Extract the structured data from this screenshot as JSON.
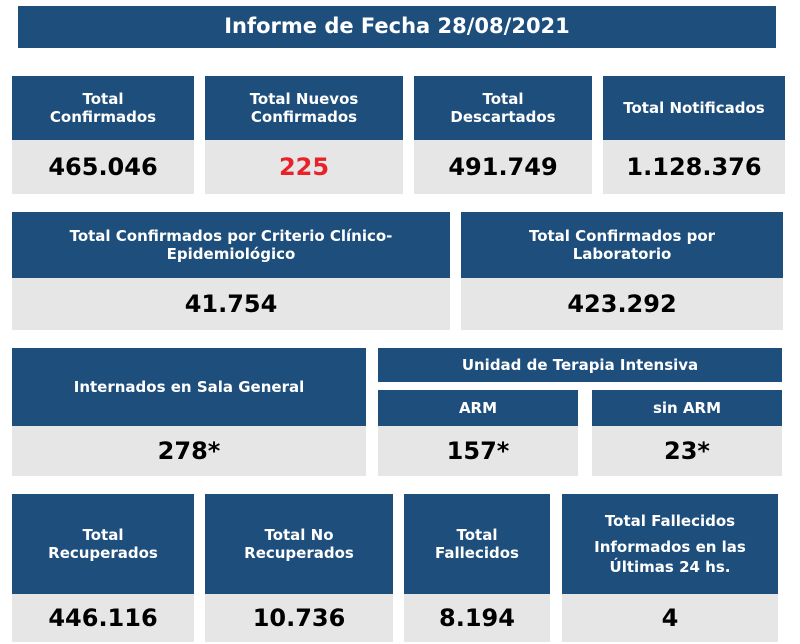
{
  "title": "Informe de Fecha 28/08/2021",
  "row1": [
    {
      "label_lines": [
        "Total",
        "Confirmados"
      ],
      "value": "465.046"
    },
    {
      "label_lines": [
        "Total Nuevos",
        "Confirmados"
      ],
      "value": "225"
    },
    {
      "label_lines": [
        "Total",
        "Descartados"
      ],
      "value": "491.749"
    },
    {
      "label_lines": [
        "Total Notificados"
      ],
      "value": "1.128.376"
    }
  ],
  "row2": [
    {
      "label_lines": [
        "Total Confirmados por Criterio Clínico-",
        "Epidemiológico"
      ],
      "value": "41.754"
    },
    {
      "label_lines": [
        "Total Confirmados por",
        "Laboratorio"
      ],
      "value": "423.292"
    }
  ],
  "row3": {
    "sala_general": {
      "label": "Internados en Sala General",
      "value": "278*"
    },
    "uti": {
      "label": "Unidad de Terapia Intensiva",
      "arm": {
        "label": "ARM",
        "value": "157*"
      },
      "sin_arm": {
        "label": "sin ARM",
        "value": "23*"
      }
    }
  },
  "row4": [
    {
      "label_lines": [
        "Total",
        "Recuperados"
      ],
      "value": "446.116"
    },
    {
      "label_lines": [
        "Total No",
        "Recuperados"
      ],
      "value": "10.736"
    },
    {
      "label_lines": [
        "Total",
        "Fallecidos"
      ],
      "value": "8.194"
    },
    {
      "label_lines": [
        "Total Fallecidos",
        "Informados en las",
        "Últimas 24 hs."
      ],
      "value": "4"
    }
  ],
  "colors": {
    "header_bg": "#1d4e7c",
    "value_bg": "#e6e6e6",
    "highlight": "#e8222a"
  }
}
